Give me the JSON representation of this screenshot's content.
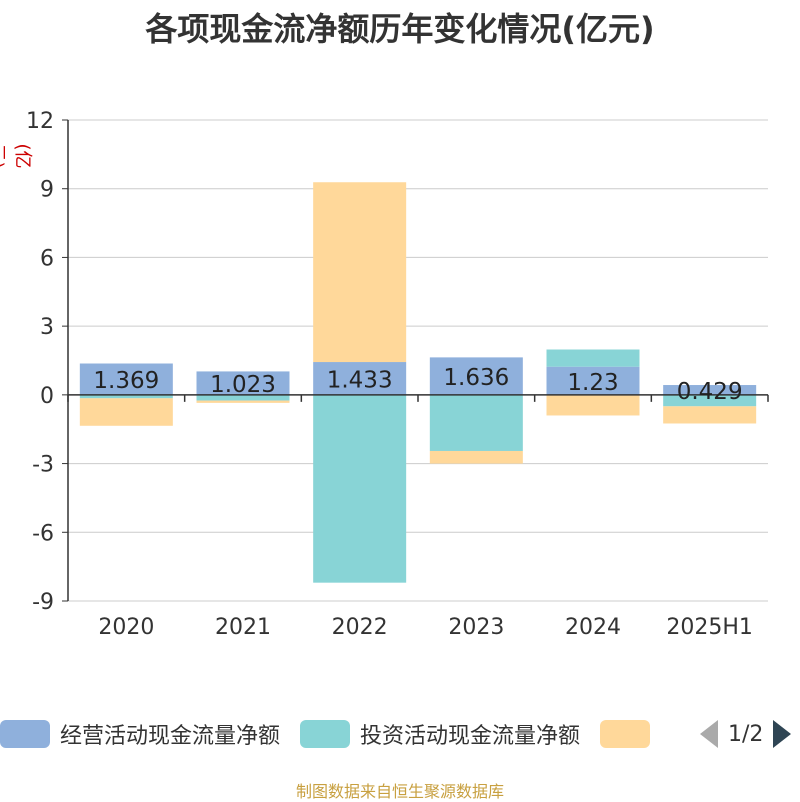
{
  "chart_data": {
    "type": "bar",
    "stacked": true,
    "title": "各项现金流净额历年变化情况(亿元)",
    "ylabel": "(亿元)",
    "ylim": [
      -9,
      12
    ],
    "yticks": [
      12,
      9,
      6,
      3,
      0,
      -3,
      -6,
      -9
    ],
    "grid": true,
    "categories": [
      "2020",
      "2021",
      "2022",
      "2023",
      "2024",
      "2025H1"
    ],
    "series": [
      {
        "name": "经营活动现金流量净额",
        "color": "#8fb0dc",
        "values": [
          1.369,
          1.023,
          1.433,
          1.636,
          1.23,
          0.429
        ],
        "labels": [
          "1.369",
          "1.023",
          "1.433",
          "1.636",
          "1.23",
          "0.429"
        ]
      },
      {
        "name": "投资活动现金流量净额",
        "color": "#88d4d6",
        "values": [
          -0.15,
          -0.25,
          -8.2,
          -2.45,
          0.75,
          -0.5
        ]
      },
      {
        "name": "",
        "color": "#ffd89a",
        "values": [
          -1.2,
          -0.1,
          7.85,
          -0.55,
          -0.9,
          -0.75
        ]
      }
    ],
    "legend_position": "bottom"
  },
  "legend": {
    "items": [
      {
        "label": "经营活动现金流量净额",
        "color": "#8fb0dc"
      },
      {
        "label": "投资活动现金流量净额",
        "color": "#88d4d6"
      },
      {
        "label": "",
        "color": "#ffd89a"
      }
    ],
    "page": "1/2"
  },
  "footer": "制图数据来自恒生聚源数据库"
}
